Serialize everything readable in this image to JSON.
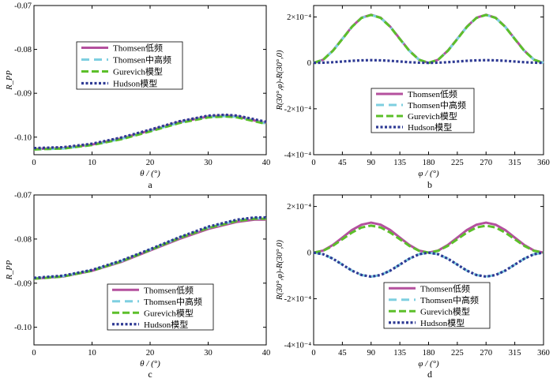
{
  "figure": {
    "legend_labels": [
      "Thomsen低频",
      "Thomsen中高频",
      "Gurevich模型",
      "Hudson模型"
    ],
    "colors": {
      "thomsen_low": "#b4509e",
      "thomsen_mid": "#7ecfe0",
      "gurevich": "#5cbf2a",
      "hudson": "#2e3a94"
    }
  },
  "chart_data": [
    {
      "id": "a",
      "panel_label": "a",
      "type": "line",
      "xlabel": "θ / (°)",
      "ylabel": "R_PP",
      "xlim": [
        0,
        40
      ],
      "ylim": [
        -0.104,
        -0.07
      ],
      "xticks": [
        0,
        10,
        20,
        30,
        40
      ],
      "yticks": [
        -0.1,
        -0.09,
        -0.08,
        -0.07
      ],
      "ytick_labels": [
        "-0.10",
        "-0.09",
        "-0.08",
        "-0.07"
      ],
      "legend_position": "center-left",
      "x": [
        0,
        5,
        10,
        15,
        20,
        25,
        30,
        33,
        35,
        40
      ],
      "series": [
        {
          "name": "Thomsen低频",
          "values": [
            -0.1027,
            -0.1025,
            -0.1017,
            -0.1003,
            -0.0985,
            -0.0966,
            -0.0953,
            -0.0951,
            -0.0953,
            -0.0968
          ]
        },
        {
          "name": "Thomsen中高频",
          "values": [
            -0.1028,
            -0.1026,
            -0.1018,
            -0.1004,
            -0.0986,
            -0.0967,
            -0.0954,
            -0.0952,
            -0.0954,
            -0.0969
          ]
        },
        {
          "name": "Gurevich模型",
          "values": [
            -0.1028,
            -0.1026,
            -0.1018,
            -0.1005,
            -0.0987,
            -0.0968,
            -0.0955,
            -0.0953,
            -0.0955,
            -0.097
          ]
        },
        {
          "name": "Hudson模型",
          "values": [
            -0.1025,
            -0.1023,
            -0.1015,
            -0.1001,
            -0.0983,
            -0.0964,
            -0.0951,
            -0.0949,
            -0.0951,
            -0.0965
          ]
        }
      ]
    },
    {
      "id": "b",
      "panel_label": "b",
      "type": "line",
      "xlabel": "φ / (°)",
      "ylabel": "R(30°,φ)-R(30°,0)",
      "xlim": [
        0,
        360
      ],
      "ylim": [
        -4,
        2.5
      ],
      "y_scale_note": "×10⁻⁴",
      "xticks": [
        0,
        45,
        90,
        135,
        180,
        225,
        270,
        315,
        360
      ],
      "yticks": [
        2,
        0,
        -2,
        -4
      ],
      "ytick_labels": [
        "2×10⁻⁴",
        "0",
        "-2×10⁻⁴",
        "-4×10⁻⁴"
      ],
      "legend_position": "lower-center",
      "x": [
        0,
        15,
        30,
        45,
        60,
        75,
        90,
        105,
        120,
        135,
        150,
        165,
        180,
        195,
        210,
        225,
        240,
        255,
        270,
        285,
        300,
        315,
        330,
        345,
        360
      ],
      "series": [
        {
          "name": "Thomsen低频",
          "values": [
            0,
            0.14,
            0.53,
            1.05,
            1.58,
            1.97,
            2.1,
            1.97,
            1.58,
            1.05,
            0.53,
            0.14,
            0,
            0.14,
            0.53,
            1.05,
            1.58,
            1.97,
            2.1,
            1.97,
            1.58,
            1.05,
            0.53,
            0.14,
            0
          ]
        },
        {
          "name": "Thomsen中高频",
          "values": [
            0,
            0.14,
            0.52,
            1.04,
            1.57,
            1.96,
            2.09,
            1.96,
            1.57,
            1.04,
            0.52,
            0.14,
            0,
            0.14,
            0.52,
            1.04,
            1.57,
            1.96,
            2.09,
            1.96,
            1.57,
            1.04,
            0.52,
            0.14,
            0
          ]
        },
        {
          "name": "Gurevich模型",
          "values": [
            0,
            0.14,
            0.52,
            1.04,
            1.57,
            1.96,
            2.09,
            1.96,
            1.57,
            1.04,
            0.52,
            0.14,
            0,
            0.14,
            0.52,
            1.04,
            1.57,
            1.96,
            2.09,
            1.96,
            1.57,
            1.04,
            0.52,
            0.14,
            0
          ]
        },
        {
          "name": "Hudson模型",
          "values": [
            0,
            0.01,
            0.03,
            0.06,
            0.09,
            0.11,
            0.12,
            0.11,
            0.09,
            0.06,
            0.03,
            0.01,
            0,
            0.01,
            0.03,
            0.06,
            0.09,
            0.11,
            0.12,
            0.11,
            0.09,
            0.06,
            0.03,
            0.01,
            0
          ]
        }
      ]
    },
    {
      "id": "c",
      "panel_label": "c",
      "type": "line",
      "xlabel": "θ / (°)",
      "ylabel": "R_PP",
      "xlim": [
        0,
        40
      ],
      "ylim": [
        -0.104,
        -0.07
      ],
      "xticks": [
        0,
        10,
        20,
        30,
        40
      ],
      "yticks": [
        -0.1,
        -0.09,
        -0.08,
        -0.07
      ],
      "ytick_labels": [
        "-0.10",
        "-0.09",
        "-0.08",
        "-0.07"
      ],
      "legend_position": "lower-right",
      "x": [
        0,
        5,
        10,
        15,
        20,
        25,
        30,
        35,
        38,
        40
      ],
      "series": [
        {
          "name": "Thomsen低频",
          "values": [
            -0.089,
            -0.0885,
            -0.0872,
            -0.0852,
            -0.0826,
            -0.08,
            -0.0777,
            -0.0761,
            -0.0756,
            -0.0756
          ]
        },
        {
          "name": "Thomsen中高频",
          "values": [
            -0.0889,
            -0.0884,
            -0.0871,
            -0.085,
            -0.0824,
            -0.0797,
            -0.0774,
            -0.0758,
            -0.0753,
            -0.0753
          ]
        },
        {
          "name": "Gurevich模型",
          "values": [
            -0.089,
            -0.0885,
            -0.0872,
            -0.0851,
            -0.0825,
            -0.0798,
            -0.0775,
            -0.0759,
            -0.0754,
            -0.0754
          ]
        },
        {
          "name": "Hudson模型",
          "values": [
            -0.0888,
            -0.0883,
            -0.087,
            -0.0849,
            -0.0823,
            -0.0796,
            -0.0772,
            -0.0756,
            -0.0751,
            -0.0751
          ]
        }
      ]
    },
    {
      "id": "d",
      "panel_label": "d",
      "type": "line",
      "xlabel": "φ / (°)",
      "ylabel": "R(30°,φ)-R(30°,0)",
      "xlim": [
        0,
        360
      ],
      "ylim": [
        -4,
        2.5
      ],
      "y_scale_note": "×10⁻⁴",
      "xticks": [
        0,
        45,
        90,
        135,
        180,
        225,
        270,
        315,
        360
      ],
      "yticks": [
        2,
        0,
        -2,
        -4
      ],
      "ytick_labels": [
        "2×10⁻⁴",
        "0",
        "-2×10⁻⁴",
        "-4×10⁻⁴"
      ],
      "legend_position": "lower-right",
      "x": [
        0,
        15,
        30,
        45,
        60,
        75,
        90,
        105,
        120,
        135,
        150,
        165,
        180,
        195,
        210,
        225,
        240,
        255,
        270,
        285,
        300,
        315,
        330,
        345,
        360
      ],
      "series": [
        {
          "name": "Thomsen低频",
          "values": [
            0,
            0.09,
            0.33,
            0.65,
            0.98,
            1.21,
            1.3,
            1.21,
            0.98,
            0.65,
            0.33,
            0.09,
            0,
            0.09,
            0.33,
            0.65,
            0.98,
            1.21,
            1.3,
            1.21,
            0.98,
            0.65,
            0.33,
            0.09,
            0
          ]
        },
        {
          "name": "Thomsen中高频",
          "values": [
            0,
            -0.07,
            -0.26,
            -0.52,
            -0.78,
            -0.97,
            -1.04,
            -0.97,
            -0.78,
            -0.52,
            -0.26,
            -0.07,
            0,
            -0.07,
            -0.26,
            -0.52,
            -0.78,
            -0.97,
            -1.04,
            -0.97,
            -0.78,
            -0.52,
            -0.26,
            -0.07,
            0
          ]
        },
        {
          "name": "Gurevich模型",
          "values": [
            0,
            0.08,
            0.29,
            0.58,
            0.87,
            1.09,
            1.17,
            1.09,
            0.87,
            0.58,
            0.29,
            0.08,
            0,
            0.08,
            0.29,
            0.58,
            0.87,
            1.09,
            1.17,
            1.09,
            0.87,
            0.58,
            0.29,
            0.08,
            0
          ]
        },
        {
          "name": "Hudson模型",
          "values": [
            0,
            -0.07,
            -0.26,
            -0.52,
            -0.78,
            -0.97,
            -1.04,
            -0.97,
            -0.78,
            -0.52,
            -0.26,
            -0.07,
            0,
            -0.07,
            -0.26,
            -0.52,
            -0.78,
            -0.97,
            -1.04,
            -0.97,
            -0.78,
            -0.52,
            -0.26,
            -0.07,
            0
          ]
        }
      ]
    }
  ]
}
